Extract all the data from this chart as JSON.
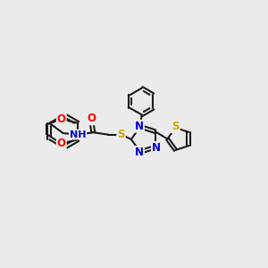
{
  "bg_color": "#ebebeb",
  "bond_color": "#1a1a1a",
  "bond_width": 1.5,
  "atom_colors": {
    "O": "#ff0000",
    "N": "#0000cc",
    "S": "#ccaa00",
    "C": "#1a1a1a"
  },
  "font_size": 8.5
}
